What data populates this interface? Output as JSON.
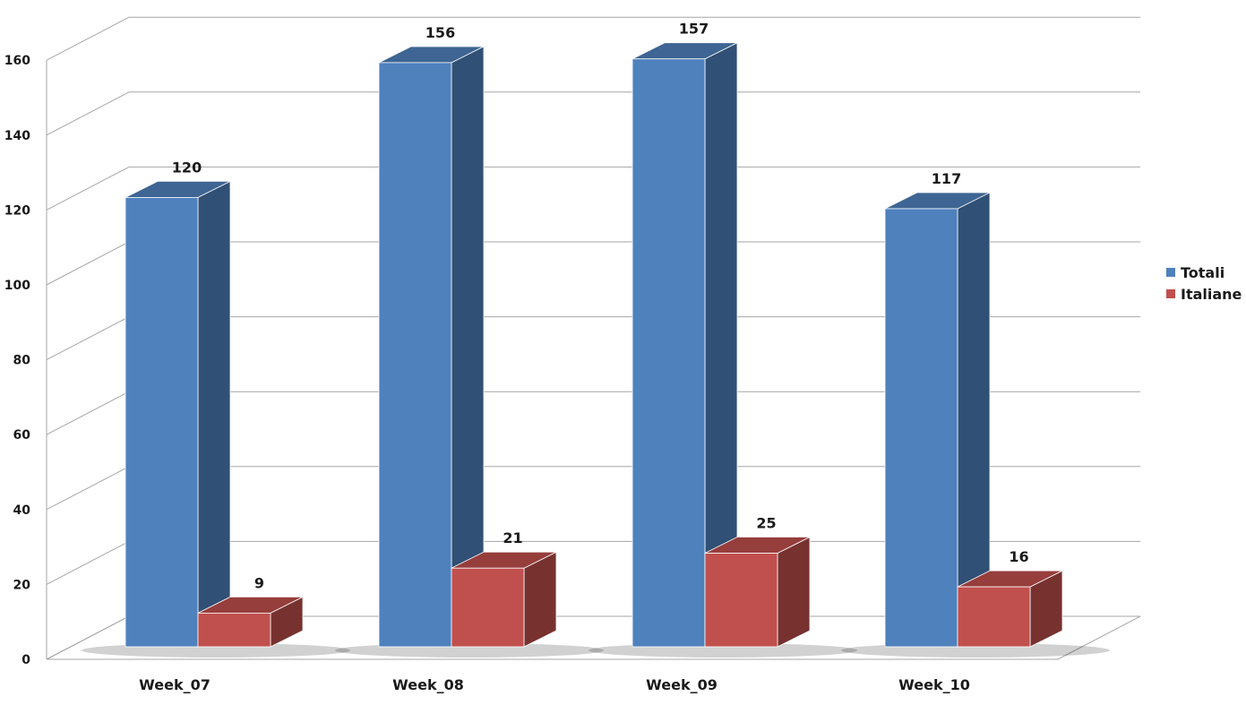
{
  "chart_data": {
    "type": "bar",
    "categories": [
      "Week_07",
      "Week_08",
      "Week_09",
      "Week_10"
    ],
    "series": [
      {
        "name": "Totali",
        "values": [
          120,
          156,
          157,
          117
        ],
        "color": "#4F81BD"
      },
      {
        "name": "Italiane",
        "values": [
          9,
          21,
          25,
          16
        ],
        "color": "#C0504D"
      }
    ],
    "ylim": [
      0,
      160
    ],
    "yticks": [
      "0",
      "20",
      "40",
      "60",
      "80",
      "100",
      "120",
      "140",
      "160"
    ],
    "grid": true,
    "legend": "right",
    "style": "3d-clustered-column"
  }
}
